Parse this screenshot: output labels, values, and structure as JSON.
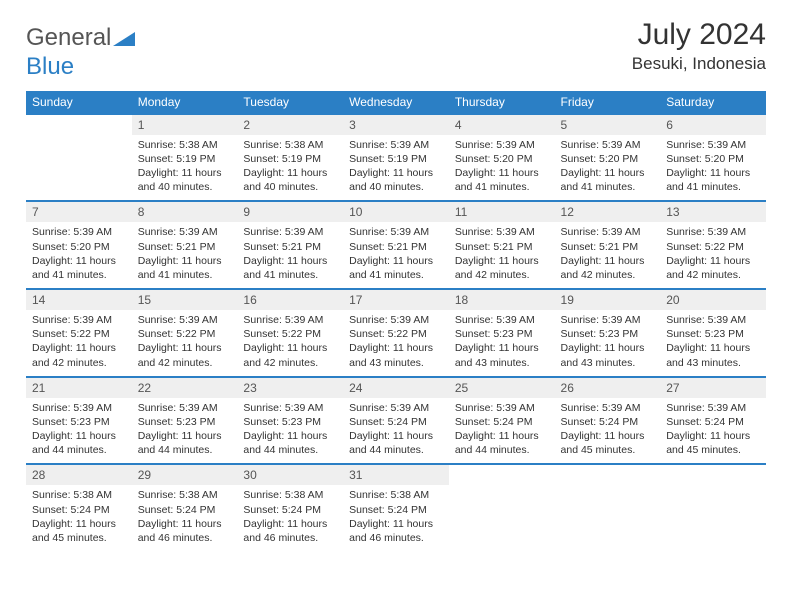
{
  "brand": {
    "word1": "General",
    "word2": "Blue"
  },
  "title": "July 2024",
  "location": "Besuki, Indonesia",
  "colors": {
    "accent": "#2b7fc5",
    "header_bg": "#2b7fc5",
    "header_text": "#ffffff",
    "daynum_bg": "#efefef",
    "text": "#333333",
    "border": "#2b7fc5"
  },
  "weekdays": [
    "Sunday",
    "Monday",
    "Tuesday",
    "Wednesday",
    "Thursday",
    "Friday",
    "Saturday"
  ],
  "weeks": [
    [
      null,
      {
        "n": "1",
        "sr": "5:38 AM",
        "ss": "5:19 PM",
        "dl": "11 hours and 40 minutes."
      },
      {
        "n": "2",
        "sr": "5:38 AM",
        "ss": "5:19 PM",
        "dl": "11 hours and 40 minutes."
      },
      {
        "n": "3",
        "sr": "5:39 AM",
        "ss": "5:19 PM",
        "dl": "11 hours and 40 minutes."
      },
      {
        "n": "4",
        "sr": "5:39 AM",
        "ss": "5:20 PM",
        "dl": "11 hours and 41 minutes."
      },
      {
        "n": "5",
        "sr": "5:39 AM",
        "ss": "5:20 PM",
        "dl": "11 hours and 41 minutes."
      },
      {
        "n": "6",
        "sr": "5:39 AM",
        "ss": "5:20 PM",
        "dl": "11 hours and 41 minutes."
      }
    ],
    [
      {
        "n": "7",
        "sr": "5:39 AM",
        "ss": "5:20 PM",
        "dl": "11 hours and 41 minutes."
      },
      {
        "n": "8",
        "sr": "5:39 AM",
        "ss": "5:21 PM",
        "dl": "11 hours and 41 minutes."
      },
      {
        "n": "9",
        "sr": "5:39 AM",
        "ss": "5:21 PM",
        "dl": "11 hours and 41 minutes."
      },
      {
        "n": "10",
        "sr": "5:39 AM",
        "ss": "5:21 PM",
        "dl": "11 hours and 41 minutes."
      },
      {
        "n": "11",
        "sr": "5:39 AM",
        "ss": "5:21 PM",
        "dl": "11 hours and 42 minutes."
      },
      {
        "n": "12",
        "sr": "5:39 AM",
        "ss": "5:21 PM",
        "dl": "11 hours and 42 minutes."
      },
      {
        "n": "13",
        "sr": "5:39 AM",
        "ss": "5:22 PM",
        "dl": "11 hours and 42 minutes."
      }
    ],
    [
      {
        "n": "14",
        "sr": "5:39 AM",
        "ss": "5:22 PM",
        "dl": "11 hours and 42 minutes."
      },
      {
        "n": "15",
        "sr": "5:39 AM",
        "ss": "5:22 PM",
        "dl": "11 hours and 42 minutes."
      },
      {
        "n": "16",
        "sr": "5:39 AM",
        "ss": "5:22 PM",
        "dl": "11 hours and 42 minutes."
      },
      {
        "n": "17",
        "sr": "5:39 AM",
        "ss": "5:22 PM",
        "dl": "11 hours and 43 minutes."
      },
      {
        "n": "18",
        "sr": "5:39 AM",
        "ss": "5:23 PM",
        "dl": "11 hours and 43 minutes."
      },
      {
        "n": "19",
        "sr": "5:39 AM",
        "ss": "5:23 PM",
        "dl": "11 hours and 43 minutes."
      },
      {
        "n": "20",
        "sr": "5:39 AM",
        "ss": "5:23 PM",
        "dl": "11 hours and 43 minutes."
      }
    ],
    [
      {
        "n": "21",
        "sr": "5:39 AM",
        "ss": "5:23 PM",
        "dl": "11 hours and 44 minutes."
      },
      {
        "n": "22",
        "sr": "5:39 AM",
        "ss": "5:23 PM",
        "dl": "11 hours and 44 minutes."
      },
      {
        "n": "23",
        "sr": "5:39 AM",
        "ss": "5:23 PM",
        "dl": "11 hours and 44 minutes."
      },
      {
        "n": "24",
        "sr": "5:39 AM",
        "ss": "5:24 PM",
        "dl": "11 hours and 44 minutes."
      },
      {
        "n": "25",
        "sr": "5:39 AM",
        "ss": "5:24 PM",
        "dl": "11 hours and 44 minutes."
      },
      {
        "n": "26",
        "sr": "5:39 AM",
        "ss": "5:24 PM",
        "dl": "11 hours and 45 minutes."
      },
      {
        "n": "27",
        "sr": "5:39 AM",
        "ss": "5:24 PM",
        "dl": "11 hours and 45 minutes."
      }
    ],
    [
      {
        "n": "28",
        "sr": "5:38 AM",
        "ss": "5:24 PM",
        "dl": "11 hours and 45 minutes."
      },
      {
        "n": "29",
        "sr": "5:38 AM",
        "ss": "5:24 PM",
        "dl": "11 hours and 46 minutes."
      },
      {
        "n": "30",
        "sr": "5:38 AM",
        "ss": "5:24 PM",
        "dl": "11 hours and 46 minutes."
      },
      {
        "n": "31",
        "sr": "5:38 AM",
        "ss": "5:24 PM",
        "dl": "11 hours and 46 minutes."
      },
      null,
      null,
      null
    ]
  ],
  "labels": {
    "sunrise": "Sunrise:",
    "sunset": "Sunset:",
    "daylight": "Daylight:"
  }
}
